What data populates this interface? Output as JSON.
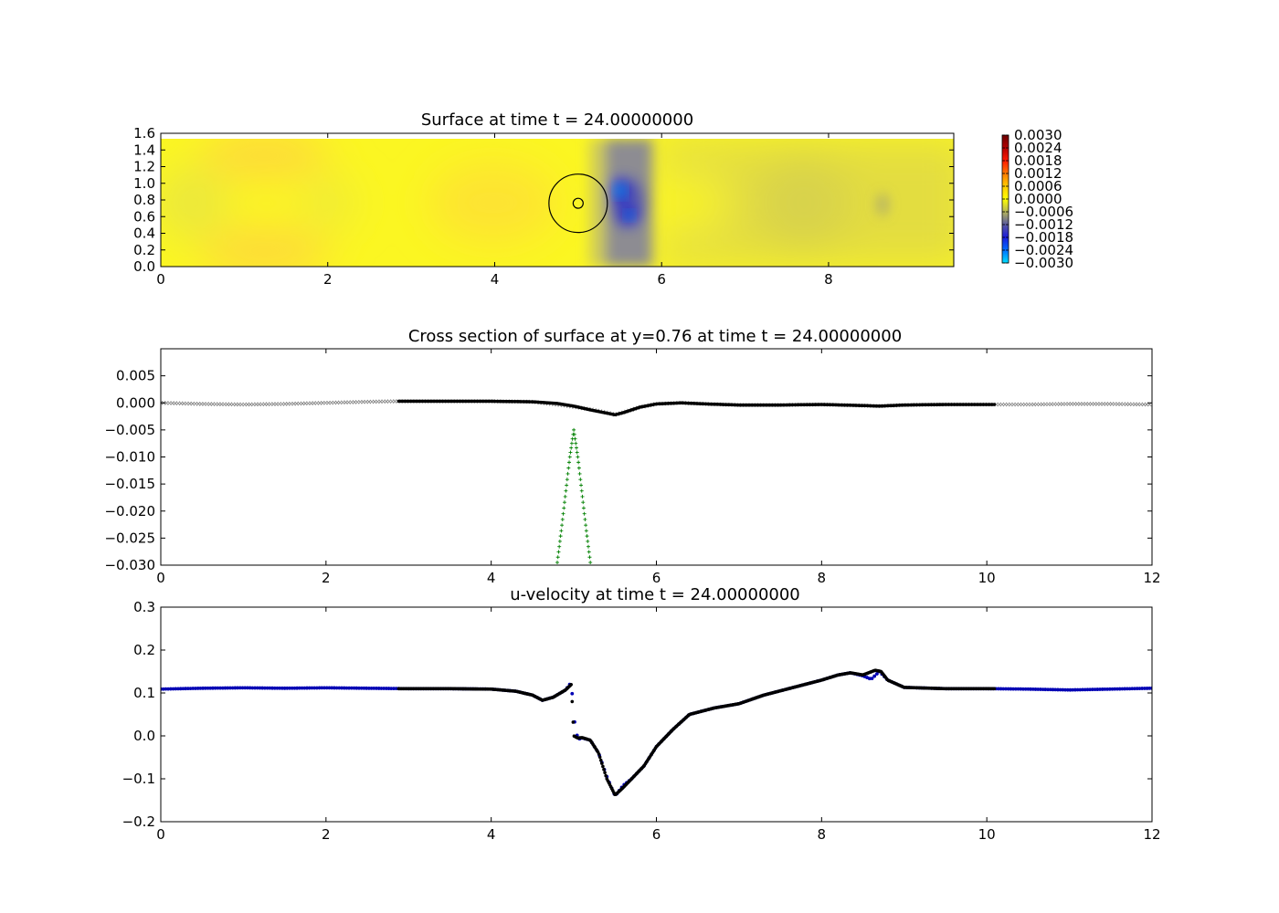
{
  "chart_data": [
    {
      "type": "heatmap",
      "title": "Surface at time t =    24.00000000",
      "xlim": [
        0,
        9.5
      ],
      "ylim": [
        0,
        1.6
      ],
      "xticks": [
        "0",
        "2",
        "4",
        "6",
        "8"
      ],
      "xtick_values": [
        0,
        2,
        4,
        6,
        8
      ],
      "yticks": [
        "0.0",
        "0.2",
        "0.4",
        "0.6",
        "0.8",
        "1.0",
        "1.2",
        "1.4",
        "1.6"
      ],
      "ytick_values": [
        0,
        0.2,
        0.4,
        0.6,
        0.8,
        1.0,
        1.2,
        1.4,
        1.6
      ],
      "data_extent_y": [
        0,
        1.53
      ],
      "circles": [
        {
          "cx": 5.0,
          "cy": 0.76,
          "r": 0.35
        },
        {
          "cx": 5.0,
          "cy": 0.76,
          "r": 0.06
        }
      ],
      "colorbar": {
        "range": [
          -0.003,
          0.003
        ],
        "labels": [
          "0.0030",
          "0.0024",
          "0.0018",
          "0.0012",
          "0.0006",
          "0.0000",
          "−0.0006",
          "−0.0012",
          "−0.0018",
          "−0.0024",
          "−0.0030"
        ],
        "label_values": [
          0.003,
          0.0024,
          0.0018,
          0.0012,
          0.0006,
          0.0,
          -0.0006,
          -0.0012,
          -0.0018,
          -0.0024,
          -0.003
        ],
        "colors": [
          "#6b0000",
          "#b40000",
          "#ff1a00",
          "#ff7a00",
          "#ffcc00",
          "#ffff00",
          "#b4b45a",
          "#5a5aa0",
          "#1a1adc",
          "#0070ff",
          "#00e0ff"
        ]
      }
    },
    {
      "type": "scatter",
      "title": "Cross section of surface at y=0.76 at time t =    24.00000000",
      "xlim": [
        0,
        12
      ],
      "ylim": [
        -0.03,
        0.01
      ],
      "xticks": [
        "0",
        "2",
        "4",
        "6",
        "8",
        "10",
        "12"
      ],
      "xtick_values": [
        0,
        2,
        4,
        6,
        8,
        10,
        12
      ],
      "yticks": [
        "0.005",
        "0.000",
        "−0.005",
        "−0.010",
        "−0.015",
        "−0.020",
        "−0.025",
        "−0.030"
      ],
      "ytick_values": [
        0.005,
        0.0,
        -0.005,
        -0.01,
        -0.015,
        -0.02,
        -0.025,
        -0.03
      ],
      "series": [
        {
          "color": "#808080",
          "marker": "x",
          "x": [
            0,
            0.5,
            1.0,
            1.5,
            2.0,
            2.5,
            2.88,
            3.0,
            3.5,
            4.0,
            4.5,
            4.9,
            5.2,
            5.4,
            5.5,
            5.6,
            5.8,
            6.0,
            6.3,
            6.6,
            7.0,
            7.5,
            8.0,
            8.5,
            8.7,
            9.0,
            9.5,
            10.0,
            10.1,
            10.5,
            11.0,
            11.5,
            12.0
          ],
          "y": [
            0.0,
            -0.0002,
            -0.0003,
            -0.0002,
            0.0,
            0.0002,
            0.0003,
            0.0003,
            0.0003,
            0.0003,
            0.0002,
            -0.0005,
            -0.0012,
            -0.0018,
            -0.0022,
            -0.0018,
            -0.0008,
            -0.0002,
            0.0,
            -0.0002,
            -0.0004,
            -0.0004,
            -0.0003,
            -0.0005,
            -0.0006,
            -0.0004,
            -0.0003,
            -0.0003,
            -0.0003,
            -0.0003,
            -0.0002,
            -0.0002,
            -0.0003
          ]
        },
        {
          "color": "#000000",
          "marker": "o",
          "x": [
            2.88,
            3.5,
            4.0,
            4.5,
            4.8,
            5.0,
            5.2,
            5.4,
            5.5,
            5.6,
            5.8,
            6.0,
            6.3,
            6.6,
            7.0,
            7.5,
            8.0,
            8.5,
            8.7,
            9.0,
            9.5,
            10.1
          ],
          "y": [
            0.0003,
            0.0003,
            0.0003,
            0.0002,
            -0.0001,
            -0.0006,
            -0.0013,
            -0.0019,
            -0.0022,
            -0.0018,
            -0.0008,
            -0.0002,
            0.0,
            -0.0002,
            -0.0004,
            -0.0004,
            -0.0003,
            -0.0005,
            -0.0006,
            -0.0004,
            -0.0003,
            -0.0003
          ]
        },
        {
          "color": "#008000",
          "marker": "+",
          "x": [
            4.8,
            4.85,
            4.9,
            4.95,
            5.0,
            5.05,
            5.1,
            5.15,
            5.2
          ],
          "y": [
            -0.0295,
            -0.0234,
            -0.0168,
            -0.0102,
            -0.005,
            -0.0102,
            -0.0168,
            -0.0234,
            -0.0295
          ]
        }
      ]
    },
    {
      "type": "scatter",
      "title": "u-velocity at time t =    24.00000000",
      "xlim": [
        0,
        12
      ],
      "ylim": [
        -0.2,
        0.3
      ],
      "xticks": [
        "0",
        "2",
        "4",
        "6",
        "8",
        "10",
        "12"
      ],
      "xtick_values": [
        0,
        2,
        4,
        6,
        8,
        10,
        12
      ],
      "yticks": [
        "0.3",
        "0.2",
        "0.1",
        "0.0",
        "−0.1",
        "−0.2"
      ],
      "ytick_values": [
        0.3,
        0.2,
        0.1,
        0.0,
        -0.1,
        -0.2
      ],
      "series": [
        {
          "color": "#0000b4",
          "marker": "o",
          "x": [
            0,
            0.5,
            1.0,
            1.5,
            2.0,
            2.5,
            3.0,
            3.5,
            4.0,
            4.3,
            4.5,
            4.62,
            4.75,
            4.9,
            4.97,
            5.0,
            5.02,
            5.05,
            5.1,
            5.2,
            5.3,
            5.4,
            5.5,
            5.6,
            5.7,
            5.85,
            6.0,
            6.2,
            6.4,
            6.7,
            7.0,
            7.3,
            7.6,
            8.0,
            8.2,
            8.35,
            8.5,
            8.6,
            8.7,
            8.8,
            9.0,
            9.5,
            10.0,
            10.5,
            11.0,
            11.5,
            12.0
          ],
          "y": [
            0.109,
            0.111,
            0.112,
            0.111,
            0.112,
            0.111,
            0.11,
            0.11,
            0.109,
            0.104,
            0.095,
            0.083,
            0.09,
            0.107,
            0.125,
            0.045,
            0.02,
            -0.008,
            -0.005,
            -0.01,
            -0.04,
            -0.095,
            -0.14,
            -0.115,
            -0.1,
            -0.07,
            -0.025,
            0.015,
            0.05,
            0.065,
            0.075,
            0.095,
            0.11,
            0.13,
            0.142,
            0.147,
            0.14,
            0.132,
            0.15,
            0.13,
            0.113,
            0.11,
            0.11,
            0.109,
            0.107,
            0.109,
            0.111
          ]
        },
        {
          "color": "#000000",
          "marker": "o",
          "x": [
            2.88,
            3.5,
            4.0,
            4.3,
            4.5,
            4.62,
            4.75,
            4.9,
            4.97,
            5.0,
            5.05,
            5.1,
            5.2,
            5.3,
            5.4,
            5.5,
            5.6,
            5.7,
            5.85,
            6.0,
            6.2,
            6.4,
            6.7,
            7.0,
            7.3,
            7.6,
            8.0,
            8.2,
            8.35,
            8.5,
            8.65,
            8.72,
            8.8,
            9.0,
            9.5,
            10.1
          ],
          "y": [
            0.11,
            0.11,
            0.109,
            0.104,
            0.095,
            0.083,
            0.09,
            0.107,
            0.12,
            0.0,
            -0.005,
            -0.004,
            -0.01,
            -0.04,
            -0.1,
            -0.138,
            -0.12,
            -0.1,
            -0.07,
            -0.025,
            0.015,
            0.05,
            0.065,
            0.075,
            0.095,
            0.11,
            0.13,
            0.142,
            0.147,
            0.142,
            0.153,
            0.15,
            0.13,
            0.113,
            0.11,
            0.11
          ]
        }
      ]
    }
  ]
}
